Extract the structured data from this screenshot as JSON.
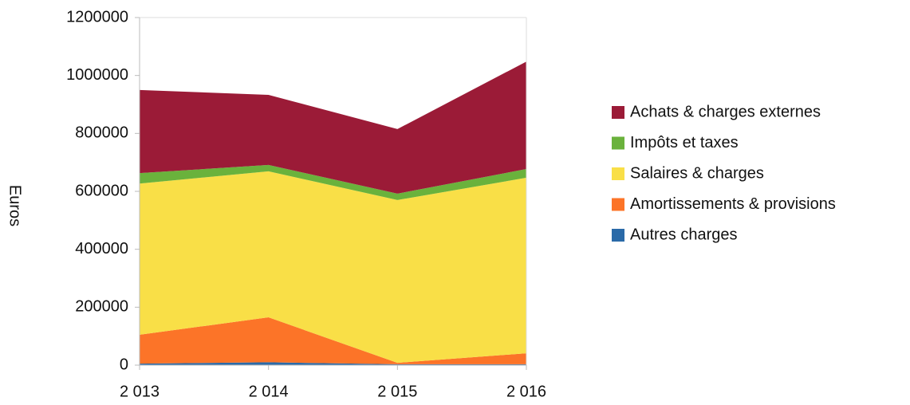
{
  "chart_data": {
    "type": "stacked_area",
    "ylabel": "Euros",
    "categories": [
      "2 013",
      "2 014",
      "2 015",
      "2 016"
    ],
    "series": [
      {
        "name": "Achats & charges externes",
        "color": "#9b1b37",
        "values": [
          287000,
          242000,
          223000,
          371000
        ]
      },
      {
        "name": "Impôts et taxes",
        "color": "#6ab23c",
        "values": [
          36000,
          22000,
          22000,
          30000
        ]
      },
      {
        "name": "Salaires & charges",
        "color": "#f9df47",
        "values": [
          522000,
          504000,
          562000,
          606000
        ]
      },
      {
        "name": "Amortissements & provisions",
        "color": "#fc7428",
        "values": [
          100000,
          155000,
          5000,
          38000
        ]
      },
      {
        "name": "Autres charges",
        "color": "#2a6aa8",
        "values": [
          5000,
          10000,
          3000,
          3000
        ]
      }
    ],
    "ylim": [
      0,
      1200000
    ],
    "yticks": [
      0,
      200000,
      400000,
      600000,
      800000,
      1000000,
      1200000
    ],
    "legend": "right"
  }
}
